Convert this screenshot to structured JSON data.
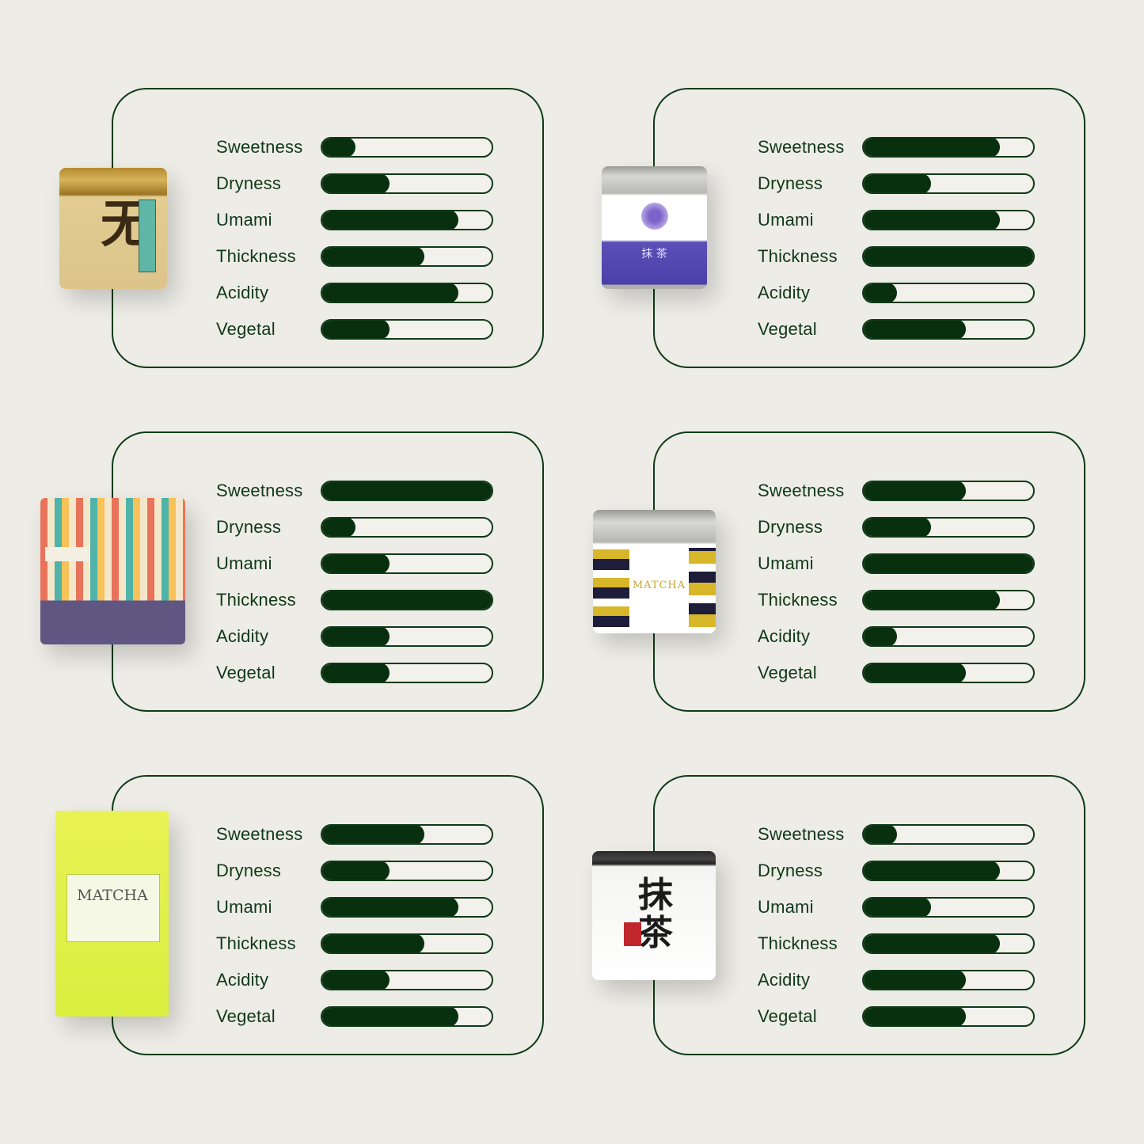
{
  "colors": {
    "background": "#edece6",
    "accent": "#08300e",
    "border": "#0f3a17"
  },
  "products": [
    {
      "image": "gold-matcha-can",
      "attributes": [
        {
          "label": "Sweetness",
          "level": 0.2
        },
        {
          "label": "Dryness",
          "level": 0.4
        },
        {
          "label": "Umami",
          "level": 0.8
        },
        {
          "label": "Thickness",
          "level": 0.6
        },
        {
          "label": "Acidity",
          "level": 0.8
        },
        {
          "label": "Vegetal",
          "level": 0.4
        }
      ]
    },
    {
      "image": "nakai-purple-can",
      "attributes": [
        {
          "label": "Sweetness",
          "level": 0.8
        },
        {
          "label": "Dryness",
          "level": 0.4
        },
        {
          "label": "Umami",
          "level": 0.8
        },
        {
          "label": "Thickness",
          "level": 1.0
        },
        {
          "label": "Acidity",
          "level": 0.2
        },
        {
          "label": "Vegetal",
          "level": 0.6
        }
      ]
    },
    {
      "image": "patterned-pouch",
      "attributes": [
        {
          "label": "Sweetness",
          "level": 1.0
        },
        {
          "label": "Dryness",
          "level": 0.2
        },
        {
          "label": "Umami",
          "level": 0.4
        },
        {
          "label": "Thickness",
          "level": 1.0
        },
        {
          "label": "Acidity",
          "level": 0.4
        },
        {
          "label": "Vegetal",
          "level": 0.4
        }
      ]
    },
    {
      "image": "organic-matcha-tin",
      "attributes": [
        {
          "label": "Sweetness",
          "level": 0.6
        },
        {
          "label": "Dryness",
          "level": 0.4
        },
        {
          "label": "Umami",
          "level": 1.0
        },
        {
          "label": "Thickness",
          "level": 0.8
        },
        {
          "label": "Acidity",
          "level": 0.2
        },
        {
          "label": "Vegetal",
          "level": 0.6
        }
      ]
    },
    {
      "image": "yellow-matcha-pouch",
      "attributes": [
        {
          "label": "Sweetness",
          "level": 0.6
        },
        {
          "label": "Dryness",
          "level": 0.4
        },
        {
          "label": "Umami",
          "level": 0.8
        },
        {
          "label": "Thickness",
          "level": 0.6
        },
        {
          "label": "Acidity",
          "level": 0.4
        },
        {
          "label": "Vegetal",
          "level": 0.8
        }
      ]
    },
    {
      "image": "kirishima-can",
      "attributes": [
        {
          "label": "Sweetness",
          "level": 0.2
        },
        {
          "label": "Dryness",
          "level": 0.8
        },
        {
          "label": "Umami",
          "level": 0.4
        },
        {
          "label": "Thickness",
          "level": 0.8
        },
        {
          "label": "Acidity",
          "level": 0.6
        },
        {
          "label": "Vegetal",
          "level": 0.6
        }
      ]
    }
  ]
}
